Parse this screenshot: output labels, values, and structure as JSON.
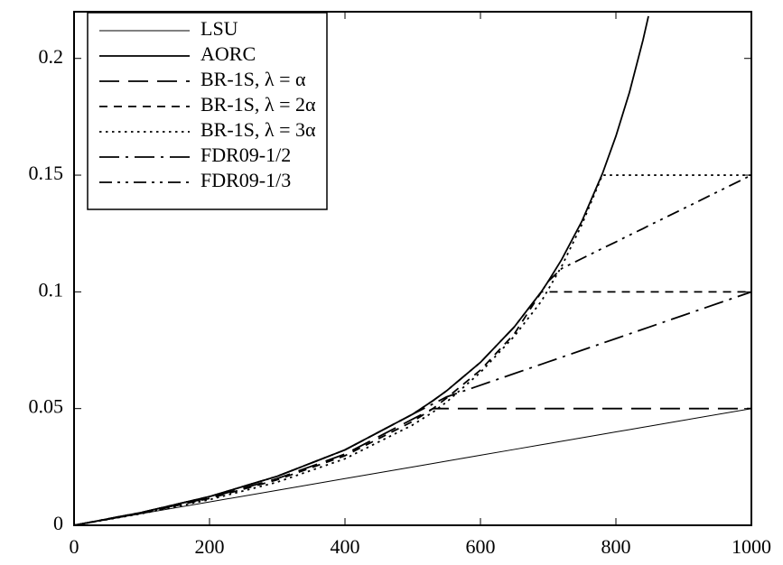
{
  "chart_data": {
    "type": "line",
    "x": [
      0,
      100,
      200,
      300,
      400,
      500,
      530,
      550,
      600,
      650,
      690,
      700,
      720,
      750,
      780,
      800,
      820,
      840,
      848,
      900,
      1000
    ],
    "xlim": [
      0,
      1000
    ],
    "xticks": [
      0,
      200,
      400,
      600,
      800,
      1000
    ],
    "ylim": [
      0,
      0.22
    ],
    "yticks": [
      0,
      0.05,
      0.1,
      0.15,
      0.2
    ],
    "legend": "top-left",
    "series": [
      {
        "name": "LSU",
        "color": "#000000",
        "line_style": "solid",
        "line_width": 1,
        "values": [
          0,
          0.005,
          0.01,
          0.015,
          0.02,
          0.025,
          0.0265,
          0.0275,
          0.03,
          0.0325,
          0.0345,
          0.035,
          0.036,
          0.0375,
          0.039,
          0.04,
          0.041,
          0.042,
          0.0424,
          0.045,
          0.05
        ]
      },
      {
        "name": "AORC",
        "color": "#000000",
        "line_style": "solid",
        "line_width": 1.8,
        "values": [
          0,
          0.0055,
          0.0123,
          0.021,
          0.0323,
          0.0476,
          0.0534,
          0.0576,
          0.0698,
          0.085,
          0.1001,
          0.1045,
          0.1139,
          0.1304,
          0.1506,
          0.1667,
          0.1855,
          0.2079,
          0.2181,
          null,
          null
        ]
      },
      {
        "name": "BR-1S, λ = α",
        "color": "#000000",
        "line_style": "dashed",
        "line_width": 1.8,
        "values": [
          0,
          0.0053,
          0.0118,
          0.02,
          0.0305,
          0.0455,
          0.05,
          0.05,
          0.05,
          0.05,
          0.05,
          0.05,
          0.05,
          0.05,
          0.05,
          0.05,
          0.05,
          0.05,
          0.05,
          0.05,
          0.05
        ]
      },
      {
        "name": "BR-1S, λ = 2α",
        "color": "#000000",
        "line_style": "short-dashed",
        "line_width": 1.8,
        "values": [
          0,
          0.0052,
          0.0115,
          0.0195,
          0.0298,
          0.0445,
          0.05,
          0.0545,
          0.0665,
          0.082,
          0.1,
          0.1,
          0.1,
          0.1,
          0.1,
          0.1,
          0.1,
          0.1,
          0.1,
          0.1,
          0.1
        ]
      },
      {
        "name": "BR-1S, λ = 3α",
        "color": "#000000",
        "line_style": "dotted",
        "line_width": 1.8,
        "values": [
          0,
          0.005,
          0.011,
          0.0185,
          0.0285,
          0.043,
          0.0485,
          0.0528,
          0.0655,
          0.081,
          0.096,
          0.101,
          0.111,
          0.129,
          0.15,
          0.15,
          0.15,
          0.15,
          0.15,
          0.15,
          0.15
        ]
      },
      {
        "name": "FDR09-1/2",
        "color": "#000000",
        "line_style": "dash-dot",
        "line_width": 1.8,
        "values": [
          0,
          0.0055,
          0.0123,
          0.021,
          0.0323,
          0.0476,
          0.052,
          0.055,
          0.06,
          0.065,
          0.069,
          0.07,
          0.072,
          0.075,
          0.078,
          0.08,
          0.082,
          0.084,
          0.0848,
          0.09,
          0.1
        ]
      },
      {
        "name": "FDR09-1/3",
        "color": "#000000",
        "line_style": "dash-dot-dot",
        "line_width": 1.8,
        "values": [
          0,
          0.0055,
          0.0123,
          0.021,
          0.0323,
          0.0476,
          0.0534,
          0.0576,
          0.0698,
          0.085,
          0.1,
          0.1045,
          0.11,
          0.1143,
          0.1186,
          0.1214,
          0.1243,
          0.1271,
          0.1283,
          0.1357,
          0.15
        ]
      }
    ]
  }
}
